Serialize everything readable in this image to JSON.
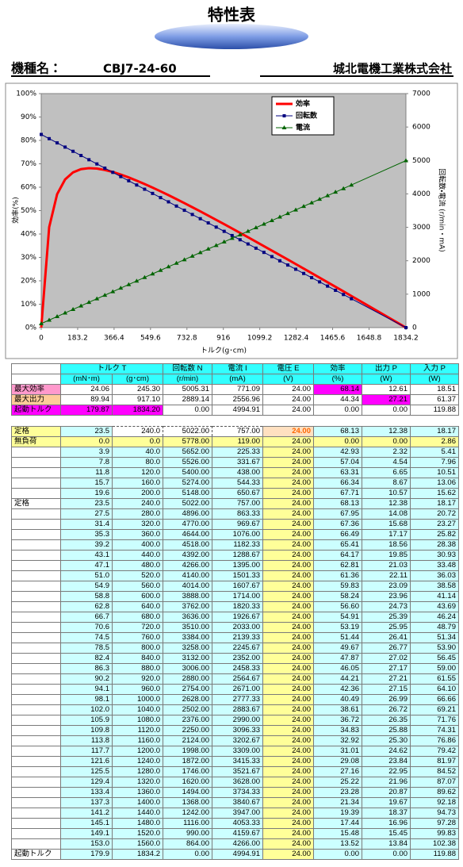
{
  "header": {
    "title": "特性表",
    "model_label": "機種名：",
    "model": "CBJ7-24-60",
    "company": "城北電機工業株式会社"
  },
  "chart_data": {
    "type": "line",
    "y_label": "効率(%)",
    "y2_label": "回転数・電流 (r/min・mA)",
    "x_label": "トルク(g･cm)",
    "legend": "top-right",
    "grid": false,
    "xlim": [
      0,
      1834.2
    ],
    "xticks": [
      0,
      183.2,
      366.4,
      549.6,
      732.8,
      916,
      1099.2,
      1282.4,
      1465.6,
      1648.8,
      1834.2
    ],
    "ylim": [
      0,
      100
    ],
    "yticks": [
      {
        "value": 0,
        "label": "0%"
      },
      {
        "value": 10,
        "label": "10%"
      },
      {
        "value": 20,
        "label": "20%"
      },
      {
        "value": 30,
        "label": "30%"
      },
      {
        "value": 40,
        "label": "40%"
      },
      {
        "value": 50,
        "label": "50%"
      },
      {
        "value": 60,
        "label": "60%"
      },
      {
        "value": 70,
        "label": "70%"
      },
      {
        "value": 80,
        "label": "80%"
      },
      {
        "value": 90,
        "label": "90%"
      },
      {
        "value": 100,
        "label": "100%"
      }
    ],
    "y2lim": [
      0,
      7000
    ],
    "y2ticks": [
      0,
      1000,
      2000,
      3000,
      4000,
      5000,
      6000,
      7000
    ],
    "x": [
      0,
      40,
      80,
      120,
      160,
      200,
      240,
      280,
      320,
      360,
      400,
      440,
      480,
      520,
      560,
      600,
      640,
      680,
      720,
      760,
      800,
      840,
      880,
      920,
      960,
      1000,
      1040,
      1080,
      1120,
      1160,
      1200,
      1240,
      1280,
      1320,
      1360,
      1400,
      1440,
      1480,
      1520,
      1560,
      1834.2
    ],
    "series": [
      {
        "name": "効率",
        "color": "#ff0000",
        "marker": "none",
        "axis": "y",
        "values": [
          0,
          42.93,
          57.04,
          63.31,
          66.34,
          67.71,
          68.13,
          67.95,
          67.36,
          66.49,
          65.41,
          64.17,
          62.81,
          61.36,
          59.83,
          58.24,
          56.6,
          54.91,
          53.19,
          51.44,
          49.67,
          47.87,
          46.05,
          44.21,
          42.36,
          40.49,
          38.61,
          36.72,
          34.83,
          32.92,
          31.01,
          29.08,
          27.16,
          25.22,
          23.28,
          21.34,
          19.39,
          17.44,
          15.48,
          13.52,
          0
        ]
      },
      {
        "name": "回転数",
        "color": "#000080",
        "marker": "square",
        "axis": "y2",
        "values": [
          5778,
          5652,
          5526,
          5400,
          5274,
          5148,
          5022,
          4896,
          4770,
          4644,
          4518,
          4392,
          4266,
          4140,
          4014,
          3888,
          3762,
          3636,
          3510,
          3384,
          3258,
          3132,
          3006,
          2880,
          2754,
          2628,
          2502,
          2376,
          2250,
          2124,
          1998,
          1872,
          1746,
          1620,
          1494,
          1368,
          1242,
          1116,
          990,
          864,
          0
        ]
      },
      {
        "name": "電流",
        "color": "#006400",
        "marker": "triangle",
        "axis": "y2",
        "values": [
          119,
          225.33,
          331.67,
          438,
          544.33,
          650.67,
          757,
          863.33,
          969.67,
          1076,
          1182.33,
          1288.67,
          1395,
          1501.33,
          1607.67,
          1714,
          1820.33,
          1926.67,
          2033,
          2139.33,
          2245.67,
          2352,
          2458.33,
          2564.67,
          2671,
          2777.33,
          2883.67,
          2990,
          3096.33,
          3202.67,
          3309,
          3415.33,
          3521.67,
          3628,
          3734.33,
          3840.67,
          3947,
          4053.33,
          4159.67,
          4266,
          4994.91
        ]
      }
    ]
  },
  "summary_table": {
    "headers": [
      "トルク T",
      "回転数 N",
      "電流 I",
      "電圧 E",
      "効率",
      "出力 P",
      "入力 P"
    ],
    "units": [
      "(mN･m)",
      "(g･cm)",
      "(r/min)",
      "(mA)",
      "(V)",
      "(%)",
      "(W)",
      "(W)"
    ],
    "rows": [
      [
        "最大効率",
        "24.06",
        "245.30",
        "5005.31",
        "771.09",
        "24.00",
        "68.14",
        "12.61",
        "18.51"
      ],
      [
        "最大出力",
        "89.94",
        "917.10",
        "2889.14",
        "2556.96",
        "24.00",
        "44.34",
        "27.21",
        "61.37"
      ],
      [
        "起動トルク",
        "179.87",
        "1834.20",
        "0.00",
        "4994.91",
        "24.00",
        "0.00",
        "0.00",
        "119.88"
      ]
    ]
  },
  "data_table": {
    "rows": [
      [
        "定格",
        "23.5",
        "240.0",
        "5022.00",
        "757.00",
        "24.00",
        "68.13",
        "12.38",
        "18.17"
      ],
      [
        "無負荷",
        "0.0",
        "0.0",
        "5778.00",
        "119.00",
        "24.00",
        "0.00",
        "0.00",
        "2.86"
      ],
      [
        null,
        "3.9",
        "40.0",
        "5652.00",
        "225.33",
        "24.00",
        "42.93",
        "2.32",
        "5.41"
      ],
      [
        null,
        "7.8",
        "80.0",
        "5526.00",
        "331.67",
        "24.00",
        "57.04",
        "4.54",
        "7.96"
      ],
      [
        null,
        "11.8",
        "120.0",
        "5400.00",
        "438.00",
        "24.00",
        "63.31",
        "6.65",
        "10.51"
      ],
      [
        null,
        "15.7",
        "160.0",
        "5274.00",
        "544.33",
        "24.00",
        "66.34",
        "8.67",
        "13.06"
      ],
      [
        null,
        "19.6",
        "200.0",
        "5148.00",
        "650.67",
        "24.00",
        "67.71",
        "10.57",
        "15.62"
      ],
      [
        "定格",
        "23.5",
        "240.0",
        "5022.00",
        "757.00",
        "24.00",
        "68.13",
        "12.38",
        "18.17"
      ],
      [
        null,
        "27.5",
        "280.0",
        "4896.00",
        "863.33",
        "24.00",
        "67.95",
        "14.08",
        "20.72"
      ],
      [
        null,
        "31.4",
        "320.0",
        "4770.00",
        "969.67",
        "24.00",
        "67.36",
        "15.68",
        "23.27"
      ],
      [
        null,
        "35.3",
        "360.0",
        "4644.00",
        "1076.00",
        "24.00",
        "66.49",
        "17.17",
        "25.82"
      ],
      [
        null,
        "39.2",
        "400.0",
        "4518.00",
        "1182.33",
        "24.00",
        "65.41",
        "18.56",
        "28.38"
      ],
      [
        null,
        "43.1",
        "440.0",
        "4392.00",
        "1288.67",
        "24.00",
        "64.17",
        "19.85",
        "30.93"
      ],
      [
        null,
        "47.1",
        "480.0",
        "4266.00",
        "1395.00",
        "24.00",
        "62.81",
        "21.03",
        "33.48"
      ],
      [
        null,
        "51.0",
        "520.0",
        "4140.00",
        "1501.33",
        "24.00",
        "61.36",
        "22.11",
        "36.03"
      ],
      [
        null,
        "54.9",
        "560.0",
        "4014.00",
        "1607.67",
        "24.00",
        "59.83",
        "23.09",
        "38.58"
      ],
      [
        null,
        "58.8",
        "600.0",
        "3888.00",
        "1714.00",
        "24.00",
        "58.24",
        "23.96",
        "41.14"
      ],
      [
        null,
        "62.8",
        "640.0",
        "3762.00",
        "1820.33",
        "24.00",
        "56.60",
        "24.73",
        "43.69"
      ],
      [
        null,
        "66.7",
        "680.0",
        "3636.00",
        "1926.67",
        "24.00",
        "54.91",
        "25.39",
        "46.24"
      ],
      [
        null,
        "70.6",
        "720.0",
        "3510.00",
        "2033.00",
        "24.00",
        "53.19",
        "25.95",
        "48.79"
      ],
      [
        null,
        "74.5",
        "760.0",
        "3384.00",
        "2139.33",
        "24.00",
        "51.44",
        "26.41",
        "51.34"
      ],
      [
        null,
        "78.5",
        "800.0",
        "3258.00",
        "2245.67",
        "24.00",
        "49.67",
        "26.77",
        "53.90"
      ],
      [
        null,
        "82.4",
        "840.0",
        "3132.00",
        "2352.00",
        "24.00",
        "47.87",
        "27.02",
        "56.45"
      ],
      [
        null,
        "86.3",
        "880.0",
        "3006.00",
        "2458.33",
        "24.00",
        "46.05",
        "27.17",
        "59.00"
      ],
      [
        null,
        "90.2",
        "920.0",
        "2880.00",
        "2564.67",
        "24.00",
        "44.21",
        "27.21",
        "61.55"
      ],
      [
        null,
        "94.1",
        "960.0",
        "2754.00",
        "2671.00",
        "24.00",
        "42.36",
        "27.15",
        "64.10"
      ],
      [
        null,
        "98.1",
        "1000.0",
        "2628.00",
        "2777.33",
        "24.00",
        "40.49",
        "26.99",
        "66.66"
      ],
      [
        null,
        "102.0",
        "1040.0",
        "2502.00",
        "2883.67",
        "24.00",
        "38.61",
        "26.72",
        "69.21"
      ],
      [
        null,
        "105.9",
        "1080.0",
        "2376.00",
        "2990.00",
        "24.00",
        "36.72",
        "26.35",
        "71.76"
      ],
      [
        null,
        "109.8",
        "1120.0",
        "2250.00",
        "3096.33",
        "24.00",
        "34.83",
        "25.88",
        "74.31"
      ],
      [
        null,
        "113.8",
        "1160.0",
        "2124.00",
        "3202.67",
        "24.00",
        "32.92",
        "25.30",
        "76.86"
      ],
      [
        null,
        "117.7",
        "1200.0",
        "1998.00",
        "3309.00",
        "24.00",
        "31.01",
        "24.62",
        "79.42"
      ],
      [
        null,
        "121.6",
        "1240.0",
        "1872.00",
        "3415.33",
        "24.00",
        "29.08",
        "23.84",
        "81.97"
      ],
      [
        null,
        "125.5",
        "1280.0",
        "1746.00",
        "3521.67",
        "24.00",
        "27.16",
        "22.95",
        "84.52"
      ],
      [
        null,
        "129.4",
        "1320.0",
        "1620.00",
        "3628.00",
        "24.00",
        "25.22",
        "21.96",
        "87.07"
      ],
      [
        null,
        "133.4",
        "1360.0",
        "1494.00",
        "3734.33",
        "24.00",
        "23.28",
        "20.87",
        "89.62"
      ],
      [
        null,
        "137.3",
        "1400.0",
        "1368.00",
        "3840.67",
        "24.00",
        "21.34",
        "19.67",
        "92.18"
      ],
      [
        null,
        "141.2",
        "1440.0",
        "1242.00",
        "3947.00",
        "24.00",
        "19.39",
        "18.37",
        "94.73"
      ],
      [
        null,
        "145.1",
        "1480.0",
        "1116.00",
        "4053.33",
        "24.00",
        "17.44",
        "16.96",
        "97.28"
      ],
      [
        null,
        "149.1",
        "1520.0",
        "990.00",
        "4159.67",
        "24.00",
        "15.48",
        "15.45",
        "99.83"
      ],
      [
        null,
        "153.0",
        "1560.0",
        "864.00",
        "4266.00",
        "24.00",
        "13.52",
        "13.84",
        "102.38"
      ],
      [
        "起動トルク",
        "179.9",
        "1834.2",
        "0.00",
        "4994.91",
        "24.00",
        "0.00",
        "0.00",
        "119.88"
      ]
    ]
  }
}
